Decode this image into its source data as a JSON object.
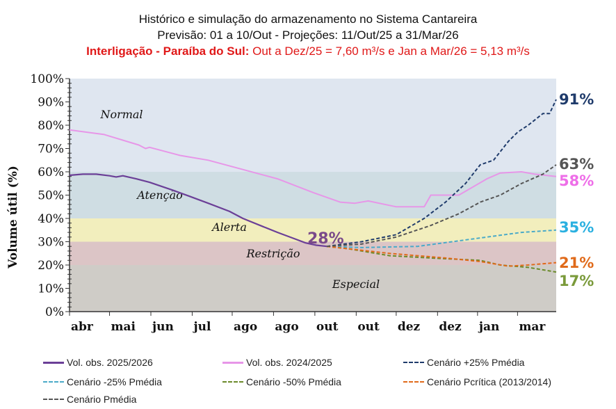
{
  "title": {
    "line1": "Histórico e simulação do armazenamento no Sistema Cantareira",
    "line2": "Previsão: 01 a 10/Out  - Projeções: 11/Out/25 a 31/Mar/26",
    "line3_bold": "Interligação - Paraíba do Sul:",
    "line3_rest": " Out a Dez/25 = 7,60 m³/s e Jan a Mar/26 = 5,13 m³/s"
  },
  "chart_data": {
    "type": "line",
    "ylabel": "Volume útil (%)",
    "ylim": [
      0,
      100
    ],
    "yticks": [
      "0%",
      "10%",
      "20%",
      "30%",
      "40%",
      "50%",
      "60%",
      "70%",
      "80%",
      "90%",
      "100%"
    ],
    "xlim": [
      0,
      365
    ],
    "xticks": [
      {
        "label": "abr",
        "day": 0
      },
      {
        "label": "mai",
        "day": 30
      },
      {
        "label": "jun",
        "day": 61
      },
      {
        "label": "jul",
        "day": 92
      },
      {
        "label": "ago",
        "day": 122
      },
      {
        "label": "ago",
        "day": 153
      },
      {
        "label": "out",
        "day": 184
      },
      {
        "label": "out",
        "day": 215
      },
      {
        "label": "dez",
        "day": 245
      },
      {
        "label": "dez",
        "day": 276
      },
      {
        "label": "jan",
        "day": 306
      },
      {
        "label": "mar",
        "day": 336
      }
    ],
    "bands": [
      {
        "name": "Normal",
        "from": 60,
        "to": 100,
        "color": "#dfe6f0"
      },
      {
        "name": "Atenção",
        "from": 40,
        "to": 60,
        "color": "#cfdde3"
      },
      {
        "name": "Alerta",
        "from": 30,
        "to": 40,
        "color": "#f2eebd"
      },
      {
        "name": "Restrição",
        "from": 20,
        "to": 30,
        "color": "#dcc5c6"
      },
      {
        "name": "Especial",
        "from": 0,
        "to": 20,
        "color": "#cfccc7"
      }
    ],
    "current_label": "28%",
    "series": [
      {
        "name": "Vol. obs. 2025/2026",
        "color": "#6b3f97",
        "dash": false,
        "width": 2.2,
        "points": [
          [
            0,
            58.5
          ],
          [
            10,
            59
          ],
          [
            20,
            59
          ],
          [
            30,
            58.3
          ],
          [
            35,
            57.8
          ],
          [
            40,
            58.3
          ],
          [
            50,
            57
          ],
          [
            60,
            55.5
          ],
          [
            78,
            52
          ],
          [
            90,
            49.5
          ],
          [
            104,
            46.5
          ],
          [
            120,
            43
          ],
          [
            130,
            40
          ],
          [
            145,
            36.5
          ],
          [
            156,
            34
          ],
          [
            170,
            31
          ],
          [
            177,
            29.5
          ],
          [
            185,
            28.5
          ],
          [
            193,
            28
          ]
        ]
      },
      {
        "name": "Vol. obs. 2024/2025",
        "color": "#e796e8",
        "dash": false,
        "width": 2,
        "points": [
          [
            0,
            78
          ],
          [
            26,
            76
          ],
          [
            52,
            71.5
          ],
          [
            57,
            70
          ],
          [
            60,
            70.5
          ],
          [
            83,
            67
          ],
          [
            104,
            65
          ],
          [
            130,
            61
          ],
          [
            156,
            57
          ],
          [
            183,
            51
          ],
          [
            203,
            47
          ],
          [
            214,
            46.5
          ],
          [
            224,
            47.5
          ],
          [
            245,
            45
          ],
          [
            266,
            45
          ],
          [
            271,
            50
          ],
          [
            292,
            50
          ],
          [
            313,
            57
          ],
          [
            323,
            59.5
          ],
          [
            339,
            60
          ],
          [
            349,
            59
          ],
          [
            365,
            58
          ]
        ]
      },
      {
        "name": "Cenário +25% Pmédia",
        "color": "#1f3b6b",
        "dash": true,
        "width": 2,
        "end_label": "91%",
        "points": [
          [
            193,
            28
          ],
          [
            219,
            30
          ],
          [
            245,
            33
          ],
          [
            266,
            40
          ],
          [
            282,
            47
          ],
          [
            297,
            55
          ],
          [
            308,
            63
          ],
          [
            318,
            65
          ],
          [
            329,
            73
          ],
          [
            336,
            77
          ],
          [
            344,
            80
          ],
          [
            355,
            85
          ],
          [
            360,
            85
          ],
          [
            365,
            91
          ]
        ]
      },
      {
        "name": "Cenário -25% Pmédia",
        "color": "#4aaac8",
        "dash": true,
        "width": 2,
        "end_label": "35%",
        "points": [
          [
            193,
            28
          ],
          [
            219,
            27.5
          ],
          [
            261,
            28
          ],
          [
            287,
            30
          ],
          [
            313,
            32
          ],
          [
            339,
            34
          ],
          [
            365,
            35
          ]
        ]
      },
      {
        "name": "Cenário -50% Pmédia",
        "color": "#6b8a2a",
        "dash": true,
        "width": 2,
        "end_label": "17%",
        "points": [
          [
            193,
            28
          ],
          [
            209,
            27
          ],
          [
            240,
            24
          ],
          [
            271,
            23
          ],
          [
            308,
            22
          ],
          [
            323,
            20
          ],
          [
            344,
            19
          ],
          [
            365,
            17
          ]
        ]
      },
      {
        "name": "Cenário Pcrítica (2013/2014)",
        "color": "#e06a1a",
        "dash": true,
        "width": 2,
        "end_label": "21%",
        "points": [
          [
            193,
            28
          ],
          [
            209,
            27
          ],
          [
            240,
            25
          ],
          [
            282,
            23
          ],
          [
            308,
            21.5
          ],
          [
            329,
            19.5
          ],
          [
            344,
            20
          ],
          [
            365,
            21
          ]
        ]
      },
      {
        "name": "Cenário Pmédia",
        "color": "#555555",
        "dash": true,
        "width": 2,
        "end_label": "63%",
        "points": [
          [
            193,
            28
          ],
          [
            219,
            29
          ],
          [
            245,
            32
          ],
          [
            271,
            37
          ],
          [
            292,
            42
          ],
          [
            308,
            47
          ],
          [
            323,
            50
          ],
          [
            339,
            55
          ],
          [
            355,
            59
          ],
          [
            365,
            63
          ]
        ]
      }
    ],
    "end_label_colors": {
      "91%": "#1f3b6b",
      "63%": "#555555",
      "58%": "#ee6ee8",
      "35%": "#2ab0e0",
      "21%": "#e06a1a",
      "17%": "#7a9a3a"
    },
    "end_label_extra": "58%",
    "legend_placement": "bottom"
  }
}
